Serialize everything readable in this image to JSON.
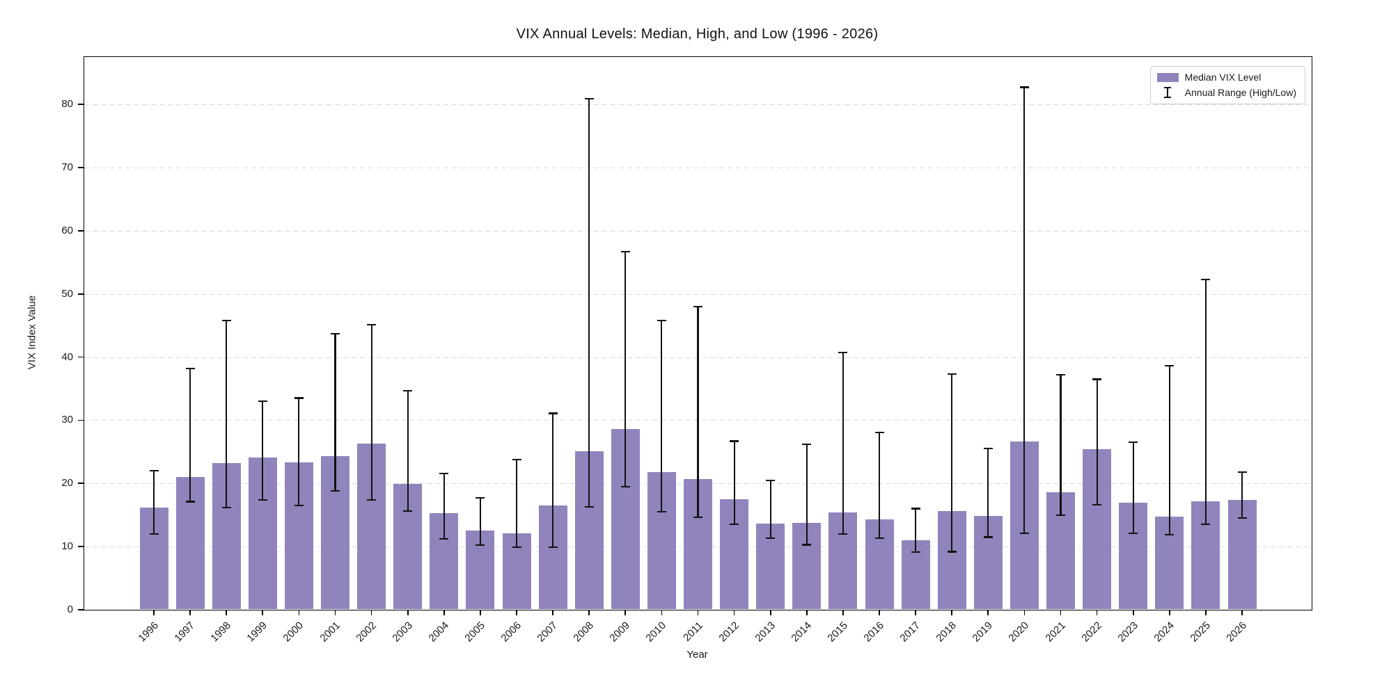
{
  "chart_data": {
    "type": "bar",
    "title": "VIX Annual Levels: Median, High, and Low (1996 - 2026)",
    "xlabel": "Year",
    "ylabel": "VIX Index Value",
    "categories": [
      "1996",
      "1997",
      "1998",
      "1999",
      "2000",
      "2001",
      "2002",
      "2003",
      "2004",
      "2005",
      "2006",
      "2007",
      "2008",
      "2009",
      "2010",
      "2011",
      "2012",
      "2013",
      "2014",
      "2015",
      "2016",
      "2017",
      "2018",
      "2019",
      "2020",
      "2021",
      "2022",
      "2023",
      "2024",
      "2025",
      "2026"
    ],
    "series": [
      {
        "name": "Median VIX Level",
        "type": "bar",
        "values": [
          16.2,
          21.0,
          23.2,
          24.1,
          23.3,
          24.3,
          26.3,
          19.9,
          15.3,
          12.6,
          12.1,
          16.5,
          25.1,
          28.6,
          21.8,
          20.7,
          17.5,
          13.7,
          13.8,
          15.4,
          14.3,
          11.0,
          15.6,
          14.9,
          26.6,
          18.6,
          25.4,
          17.0,
          14.7,
          17.2,
          17.4
        ]
      },
      {
        "name": "Annual Range (High/Low)",
        "type": "errorbar",
        "high": [
          22.0,
          38.2,
          45.8,
          33.0,
          33.5,
          43.7,
          45.1,
          34.7,
          21.6,
          17.7,
          23.8,
          31.1,
          80.9,
          56.7,
          45.8,
          48.0,
          26.7,
          20.5,
          26.2,
          40.7,
          28.1,
          16.0,
          37.3,
          25.5,
          82.7,
          37.2,
          36.5,
          26.5,
          38.6,
          52.3,
          21.8
        ],
        "low": [
          12.0,
          17.1,
          16.2,
          17.4,
          16.5,
          18.8,
          17.4,
          15.6,
          11.2,
          10.2,
          9.9,
          9.9,
          16.3,
          19.5,
          15.5,
          14.6,
          13.5,
          11.3,
          10.3,
          12.0,
          11.3,
          9.1,
          9.2,
          11.5,
          12.1,
          15.0,
          16.6,
          12.1,
          11.9,
          13.5,
          14.5
        ]
      }
    ],
    "ylim": [
      0,
      87.5
    ],
    "yticks": [
      0,
      10,
      20,
      30,
      40,
      50,
      60,
      70,
      80
    ],
    "grid": "horizontal-dashed",
    "legend_position": "top-right",
    "colors": {
      "bar": "#9184BC",
      "error": "#121212",
      "grid": "#d9d9d9",
      "frame": "#000000",
      "background": "#ffffff"
    }
  }
}
